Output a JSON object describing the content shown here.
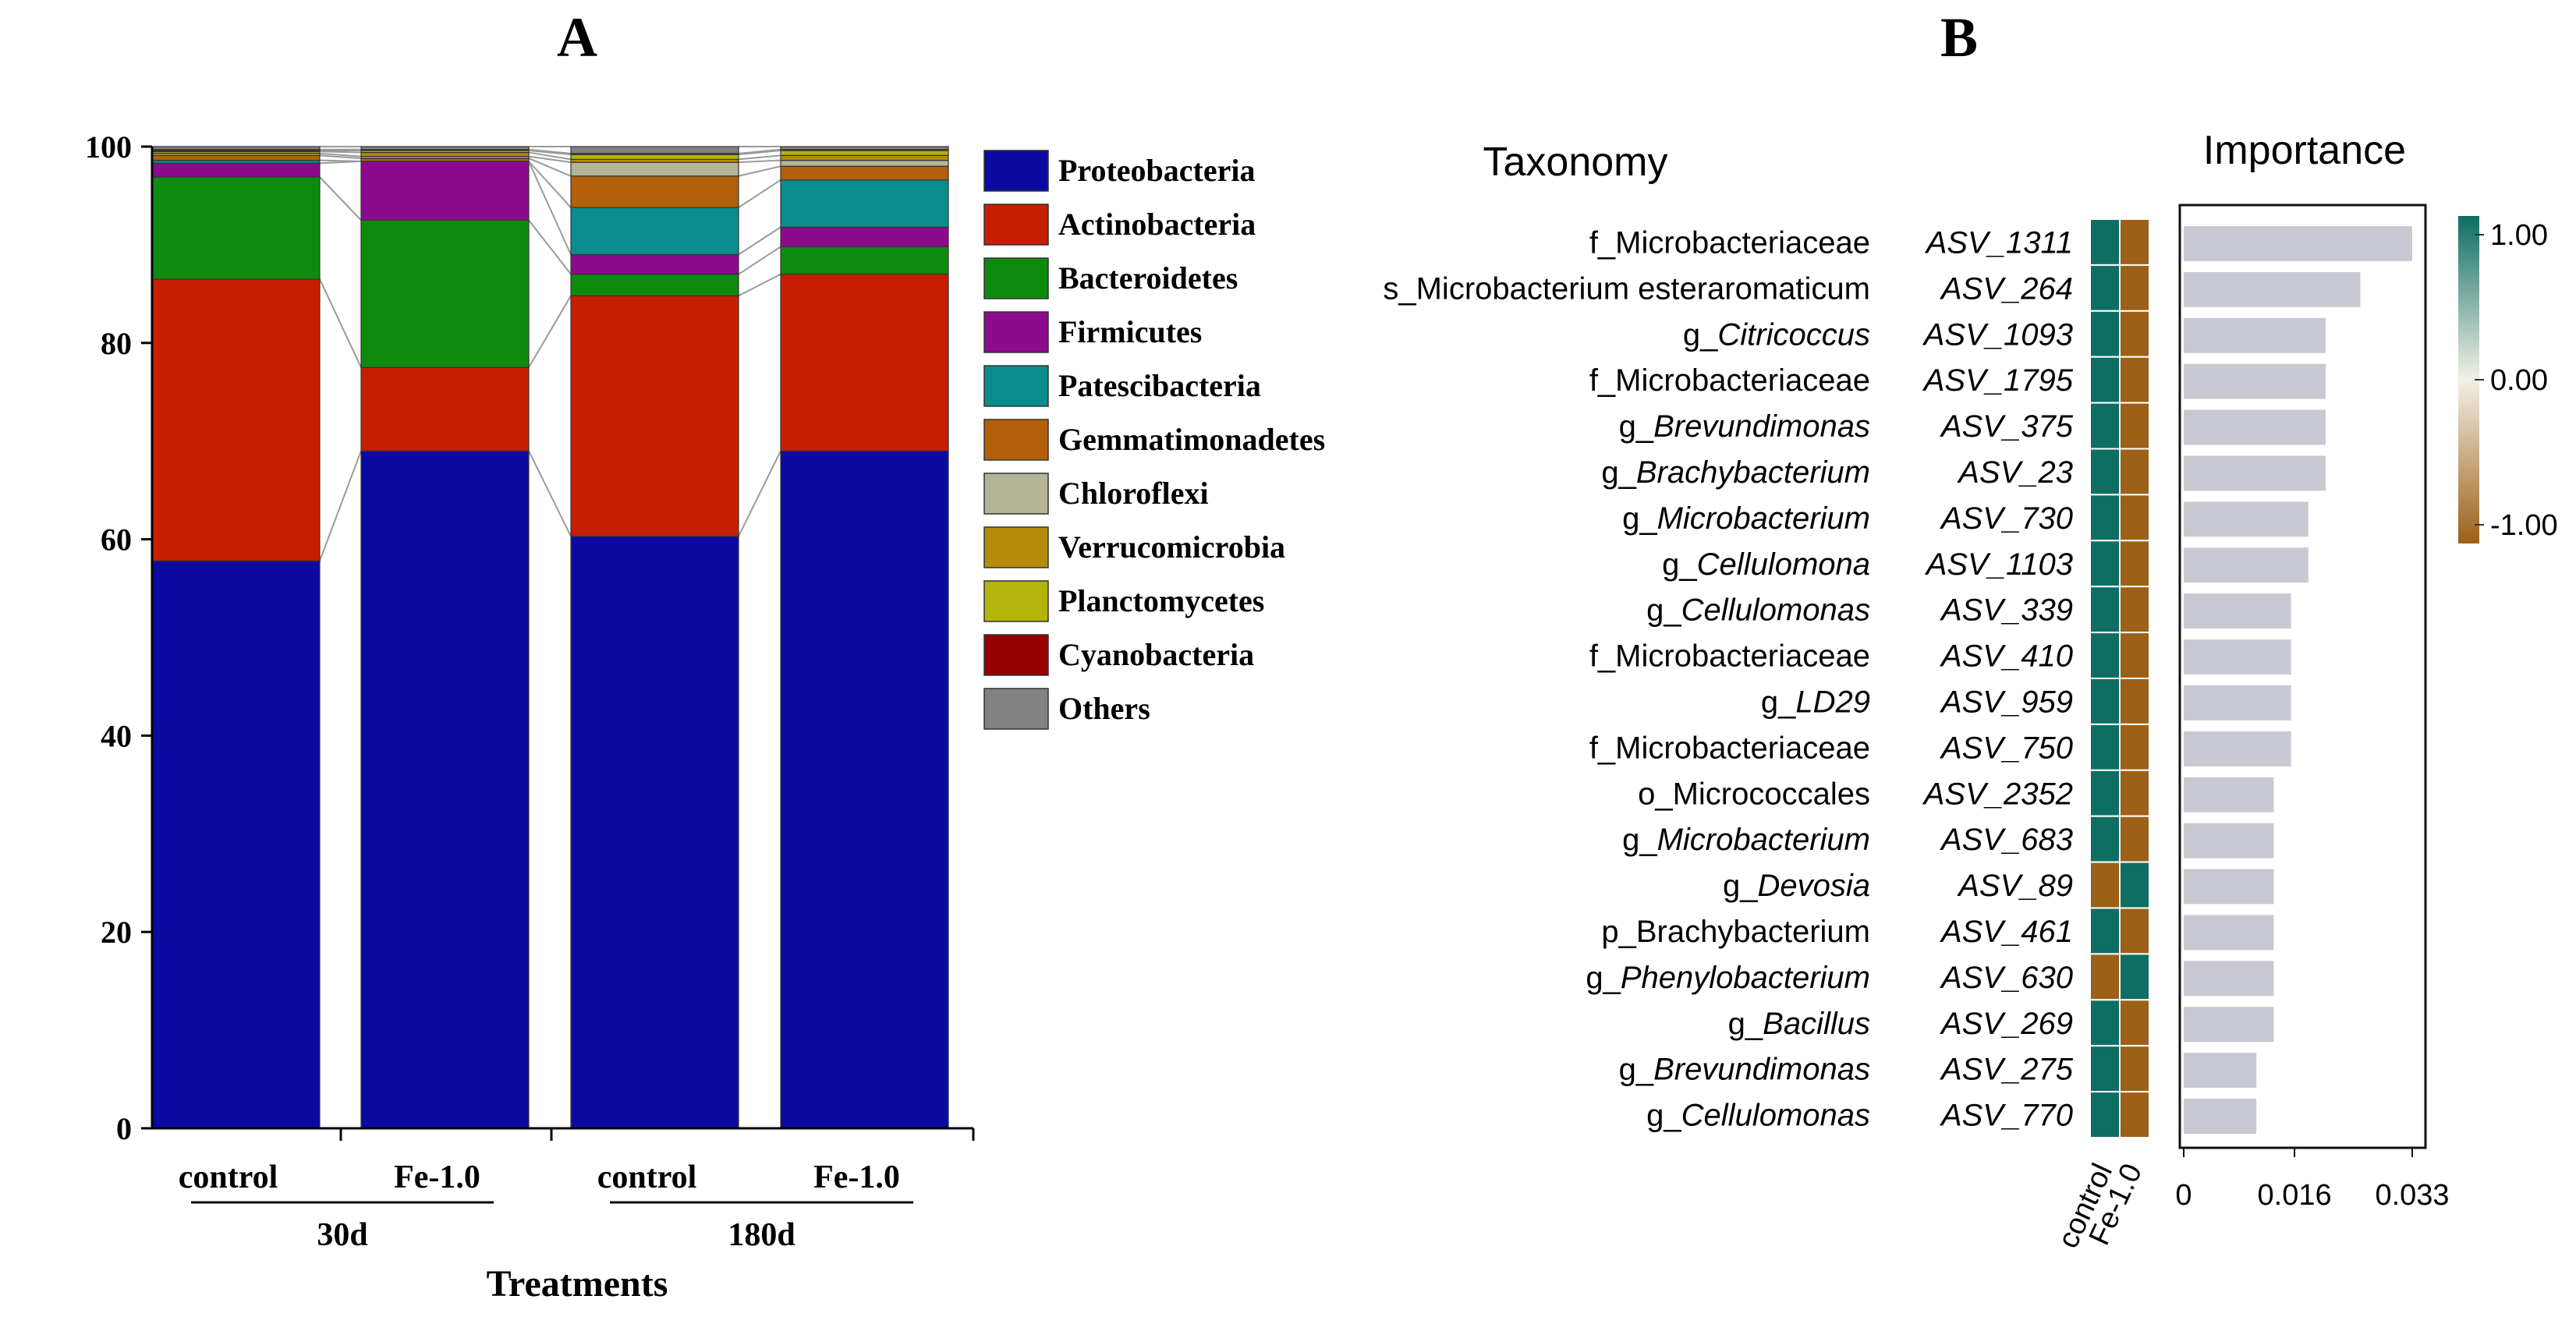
{
  "panels": {
    "a_label": "A",
    "b_label": "B"
  },
  "chart_data": [
    {
      "type": "bar",
      "stacked": true,
      "title": "",
      "xlabel": "Treatments",
      "ylabel": "",
      "ylim": [
        0,
        100
      ],
      "yticks": [
        0,
        20,
        40,
        60,
        80,
        100
      ],
      "ytick_labels": [
        "0",
        "20",
        "40",
        "60",
        "80",
        "100"
      ],
      "categories": [
        "control",
        "Fe-1.0",
        "control",
        "Fe-1.0"
      ],
      "groups": [
        {
          "label": "30d",
          "members": [
            0,
            1
          ]
        },
        {
          "label": "180d",
          "members": [
            2,
            3
          ]
        }
      ],
      "legend_position": "right",
      "series": [
        {
          "name": "Proteobacteria",
          "color": "#0a0aa0",
          "values": [
            57.8,
            69.0,
            60.3,
            69.0
          ]
        },
        {
          "name": "Actinobacteria",
          "color": "#c81e00",
          "values": [
            28.7,
            8.5,
            24.5,
            18.0
          ]
        },
        {
          "name": "Bacteroidetes",
          "color": "#0e8a0e",
          "values": [
            10.4,
            15.0,
            2.2,
            2.8
          ]
        },
        {
          "name": "Firmicutes",
          "color": "#8c0a8c",
          "values": [
            1.4,
            6.0,
            2.0,
            2.0
          ]
        },
        {
          "name": "Patescibacteria",
          "color": "#0a8c8c",
          "values": [
            0.3,
            0.0,
            4.8,
            4.8
          ]
        },
        {
          "name": "Gemmatimonadetes",
          "color": "#b4600a",
          "values": [
            0.5,
            0.3,
            3.2,
            1.4
          ]
        },
        {
          "name": "Chloroflexi",
          "color": "#b4b496",
          "values": [
            0.2,
            0.2,
            1.4,
            0.6
          ]
        },
        {
          "name": "Verrucomicrobia",
          "color": "#b48c0a",
          "values": [
            0.2,
            0.4,
            0.3,
            0.5
          ]
        },
        {
          "name": "Planctomycetes",
          "color": "#b4b40a",
          "values": [
            0.1,
            0.2,
            0.5,
            0.5
          ]
        },
        {
          "name": "Cyanobacteria",
          "color": "#960000",
          "values": [
            0.1,
            0.1,
            0.1,
            0.1
          ]
        },
        {
          "name": "Others",
          "color": "#828282",
          "values": [
            0.3,
            0.3,
            0.7,
            0.3
          ]
        }
      ]
    },
    {
      "type": "bar",
      "orientation": "horizontal",
      "title": "Importance",
      "row_header": "Taxonomy",
      "xlabel": "",
      "xlim": [
        0,
        0.033
      ],
      "xticks": [
        0,
        0.016,
        0.033
      ],
      "xtick_labels": [
        "0",
        "0.016",
        "0.033"
      ],
      "bar_color": "#c8c8d2",
      "heatmap": {
        "columns": [
          "control",
          "Fe-1.0"
        ],
        "colorbar_ticks": [
          "1.00",
          "0.00",
          "-1.00"
        ],
        "high_color": "#0e6e64",
        "mid_color": "#f2f0e6",
        "low_color": "#9c6018"
      },
      "rows": [
        {
          "prefix": "f_",
          "name": "Microbacteriaceae",
          "italic": false,
          "asv": "ASV_1311",
          "value": 0.033,
          "heat": [
            1,
            -1
          ]
        },
        {
          "prefix": "s_",
          "name": "Microbacterium esteraromaticum",
          "italic": false,
          "asv": "ASV_264",
          "value": 0.0255,
          "heat": [
            1,
            -1
          ]
        },
        {
          "prefix": "g_",
          "name": "Citricoccus",
          "italic": true,
          "asv": "ASV_1093",
          "value": 0.0205,
          "heat": [
            1,
            -1
          ]
        },
        {
          "prefix": "f_",
          "name": "Microbacteriaceae",
          "italic": false,
          "asv": "ASV_1795",
          "value": 0.0205,
          "heat": [
            1,
            -1
          ]
        },
        {
          "prefix": "g_",
          "name": "Brevundimonas",
          "italic": true,
          "asv": "ASV_375",
          "value": 0.0205,
          "heat": [
            1,
            -1
          ]
        },
        {
          "prefix": "g_",
          "name": "Brachybacterium",
          "italic": true,
          "asv": "ASV_23",
          "value": 0.0205,
          "heat": [
            1,
            -1
          ]
        },
        {
          "prefix": "g_",
          "name": "Microbacterium",
          "italic": true,
          "asv": "ASV_730",
          "value": 0.018,
          "heat": [
            1,
            -1
          ]
        },
        {
          "prefix": "g_",
          "name": "Cellulomona",
          "italic": true,
          "asv": "ASV_1103",
          "value": 0.018,
          "heat": [
            1,
            -1
          ]
        },
        {
          "prefix": "g_",
          "name": "Cellulomonas",
          "italic": true,
          "asv": "ASV_339",
          "value": 0.0155,
          "heat": [
            1,
            -1
          ]
        },
        {
          "prefix": "f_",
          "name": "Microbacteriaceae",
          "italic": false,
          "asv": "ASV_410",
          "value": 0.0155,
          "heat": [
            1,
            -1
          ]
        },
        {
          "prefix": "g_",
          "name": "LD29",
          "italic": true,
          "asv": "ASV_959",
          "value": 0.0155,
          "heat": [
            1,
            -1
          ]
        },
        {
          "prefix": "f_",
          "name": "Microbacteriaceae",
          "italic": false,
          "asv": "ASV_750",
          "value": 0.0155,
          "heat": [
            1,
            -1
          ]
        },
        {
          "prefix": "o_",
          "name": "Micrococcales",
          "italic": false,
          "asv": "ASV_2352",
          "value": 0.013,
          "heat": [
            1,
            -1
          ]
        },
        {
          "prefix": "g_",
          "name": "Microbacterium",
          "italic": true,
          "asv": "ASV_683",
          "value": 0.013,
          "heat": [
            1,
            -1
          ]
        },
        {
          "prefix": "g_",
          "name": "Devosia",
          "italic": true,
          "asv": "ASV_89",
          "value": 0.013,
          "heat": [
            -1,
            1
          ]
        },
        {
          "prefix": "p_",
          "name": "Brachybacterium",
          "italic": false,
          "asv": "ASV_461",
          "value": 0.013,
          "heat": [
            1,
            -1
          ]
        },
        {
          "prefix": "g_",
          "name": "Phenylobacterium",
          "italic": true,
          "asv": "ASV_630",
          "value": 0.013,
          "heat": [
            -1,
            1
          ]
        },
        {
          "prefix": "g_",
          "name": "Bacillus",
          "italic": true,
          "asv": "ASV_269",
          "value": 0.013,
          "heat": [
            1,
            -1
          ]
        },
        {
          "prefix": "g_",
          "name": "Brevundimonas",
          "italic": true,
          "asv": "ASV_275",
          "value": 0.0105,
          "heat": [
            1,
            -1
          ]
        },
        {
          "prefix": "g_",
          "name": "Cellulomonas",
          "italic": true,
          "asv": "ASV_770",
          "value": 0.0105,
          "heat": [
            1,
            -1
          ]
        }
      ]
    }
  ]
}
